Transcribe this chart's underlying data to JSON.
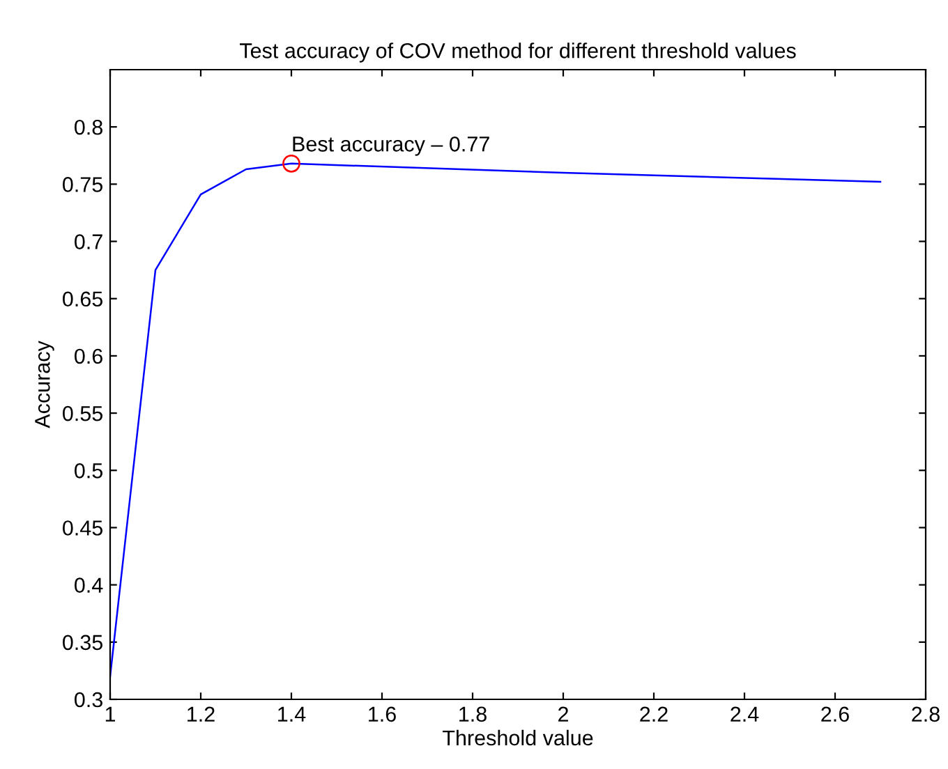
{
  "chart_data": {
    "type": "line",
    "title": "Test accuracy of COV method for different threshold values",
    "xlabel": "Threshold value",
    "ylabel": "Accuracy",
    "series": [
      {
        "color": "#0000ff",
        "x": [
          1.0,
          1.1,
          1.2,
          1.3,
          1.4,
          2.0,
          2.7
        ],
        "values": [
          0.32,
          0.675,
          0.741,
          0.763,
          0.768,
          0.76,
          0.752
        ]
      },
      {
        "type": "scatter",
        "color": "#ff0000",
        "x": [
          1.4
        ],
        "values": [
          0.768
        ]
      }
    ],
    "annotations": [
      {
        "text": "Best accuracy – 0.77",
        "x": 1.4,
        "y": 0.768
      }
    ],
    "xlim": [
      1,
      2.8
    ],
    "xticks": [
      1,
      1.2,
      1.4,
      1.6,
      1.8,
      2,
      2.2,
      2.4,
      2.6,
      2.8
    ],
    "ylim": [
      0.3,
      0.85
    ],
    "yticks": [
      0.3,
      0.35,
      0.4,
      0.45,
      0.5,
      0.55,
      0.6,
      0.65,
      0.7,
      0.75,
      0.8
    ],
    "grid": false,
    "legend": false
  }
}
